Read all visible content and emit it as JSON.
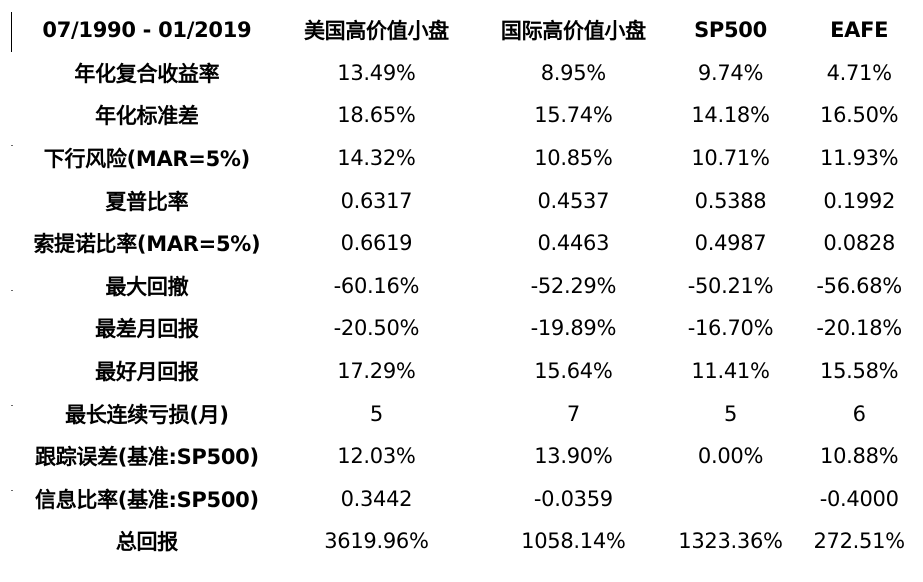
{
  "table": {
    "headers": [
      "07/1990 - 01/2019",
      "美国高价值小盘",
      "国际高价值小盘",
      "SP500",
      "EAFE"
    ],
    "rows": [
      {
        "label": "年化复合收益率",
        "values": [
          "13.49%",
          "8.95%",
          "9.74%",
          "4.71%"
        ]
      },
      {
        "label": "年化标准差",
        "values": [
          "18.65%",
          "15.74%",
          "14.18%",
          "16.50%"
        ]
      },
      {
        "label": "下行风险(MAR=5%)",
        "values": [
          "14.32%",
          "10.85%",
          "10.71%",
          "11.93%"
        ]
      },
      {
        "label": "夏普比率",
        "values": [
          "0.6317",
          "0.4537",
          "0.5388",
          "0.1992"
        ]
      },
      {
        "label": "索提诺比率(MAR=5%)",
        "values": [
          "0.6619",
          "0.4463",
          "0.4987",
          "0.0828"
        ]
      },
      {
        "label": "最大回撤",
        "values": [
          "-60.16%",
          "-52.29%",
          "-50.21%",
          "-56.68%"
        ]
      },
      {
        "label": "最差月回报",
        "values": [
          "-20.50%",
          "-19.89%",
          "-16.70%",
          "-20.18%"
        ]
      },
      {
        "label": "最好月回报",
        "values": [
          "17.29%",
          "15.64%",
          "11.41%",
          "15.58%"
        ]
      },
      {
        "label": "最长连续亏损(月)",
        "values": [
          "5",
          "7",
          "5",
          "6"
        ]
      },
      {
        "label": "跟踪误差(基准:SP500)",
        "values": [
          "12.03%",
          "13.90%",
          "0.00%",
          "10.88%"
        ]
      },
      {
        "label": "信息比率(基准:SP500)",
        "values": [
          "0.3442",
          "-0.0359",
          "",
          "-0.4000"
        ]
      },
      {
        "label": "总回报",
        "values": [
          "3619.96%",
          "1058.14%",
          "1323.36%",
          "272.51%"
        ]
      }
    ]
  }
}
